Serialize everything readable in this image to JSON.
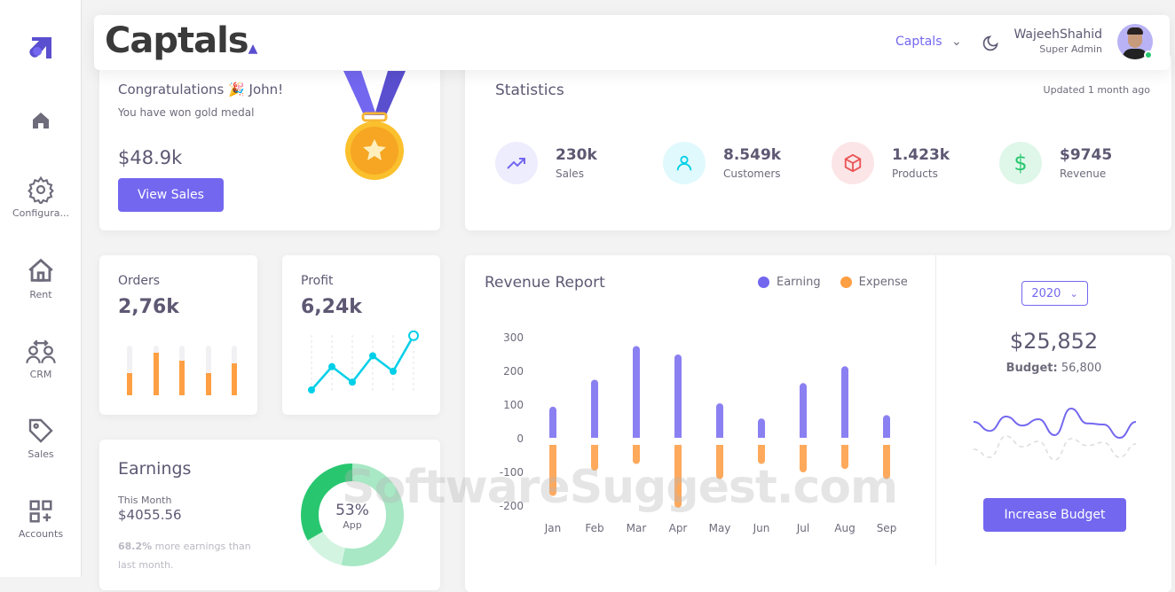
{
  "sidebar": {
    "items": [
      {
        "label": "",
        "icon": "logo-icon"
      },
      {
        "label": "",
        "icon": "home-icon"
      },
      {
        "label": "Configura...",
        "icon": "gear-icon"
      },
      {
        "label": "Rent",
        "icon": "house-icon"
      },
      {
        "label": "CRM",
        "icon": "users-icon"
      },
      {
        "label": "Sales",
        "icon": "tag-icon"
      },
      {
        "label": "Accounts",
        "icon": "grid-plus-icon"
      }
    ]
  },
  "header": {
    "brand": "Captals",
    "workspace": "Captals",
    "user_name": "WajeehShahid",
    "user_role": "Super Admin"
  },
  "congrats": {
    "title": "Congratulations 🎉 John!",
    "subtitle": "You have won gold medal",
    "amount": "$48.9k",
    "button": "View Sales"
  },
  "statistics": {
    "title": "Statistics",
    "updated": "Updated 1 month ago",
    "items": [
      {
        "value": "230k",
        "label": "Sales",
        "color": "#7367f0"
      },
      {
        "value": "8.549k",
        "label": "Customers",
        "color": "#00cfe8"
      },
      {
        "value": "1.423k",
        "label": "Products",
        "color": "#ea5455"
      },
      {
        "value": "$9745",
        "label": "Revenue",
        "color": "#28c76f"
      }
    ]
  },
  "orders": {
    "title": "Orders",
    "value": "2,76k",
    "bars": [
      45,
      85,
      70,
      45,
      65
    ]
  },
  "profit": {
    "title": "Profit",
    "value": "6,24k",
    "points": [
      0,
      15,
      5,
      22,
      12,
      35
    ]
  },
  "earnings": {
    "title": "Earnings",
    "period": "This Month",
    "amount": "$4055.56",
    "change": "68.2%",
    "change_text": " more earnings than last month.",
    "donut_percent": "53%",
    "donut_label": "App"
  },
  "revenue": {
    "title": "Revenue Report",
    "year": "2020",
    "total": "$25,852",
    "budget_label": "Budget:",
    "budget_value": "56,800",
    "button": "Increase Budget"
  },
  "budget_spark": {
    "actual": [
      45,
      28,
      55,
      38,
      50,
      20,
      70,
      42,
      40,
      15,
      45
    ],
    "previous": [
      35,
      20,
      60,
      40,
      50,
      15,
      55,
      42,
      48,
      20,
      45
    ]
  },
  "chart_data": {
    "type": "bar",
    "title": "Revenue Report",
    "categories": [
      "Jan",
      "Feb",
      "Mar",
      "Apr",
      "May",
      "Jun",
      "Jul",
      "Aug",
      "Sep"
    ],
    "series": [
      {
        "name": "Earning",
        "color": "#7367f0",
        "values": [
          95,
          175,
          275,
          250,
          105,
          60,
          165,
          215,
          70
        ]
      },
      {
        "name": "Expense",
        "color": "#ff9f43",
        "values": [
          -170,
          -95,
          -75,
          -205,
          -120,
          -75,
          -100,
          -90,
          -120
        ]
      }
    ],
    "yticks": [
      300,
      200,
      100,
      0,
      -100,
      -200
    ],
    "ylim": [
      -200,
      300
    ],
    "legend": "top-right"
  },
  "watermark": "SoftwareSuggest.com"
}
